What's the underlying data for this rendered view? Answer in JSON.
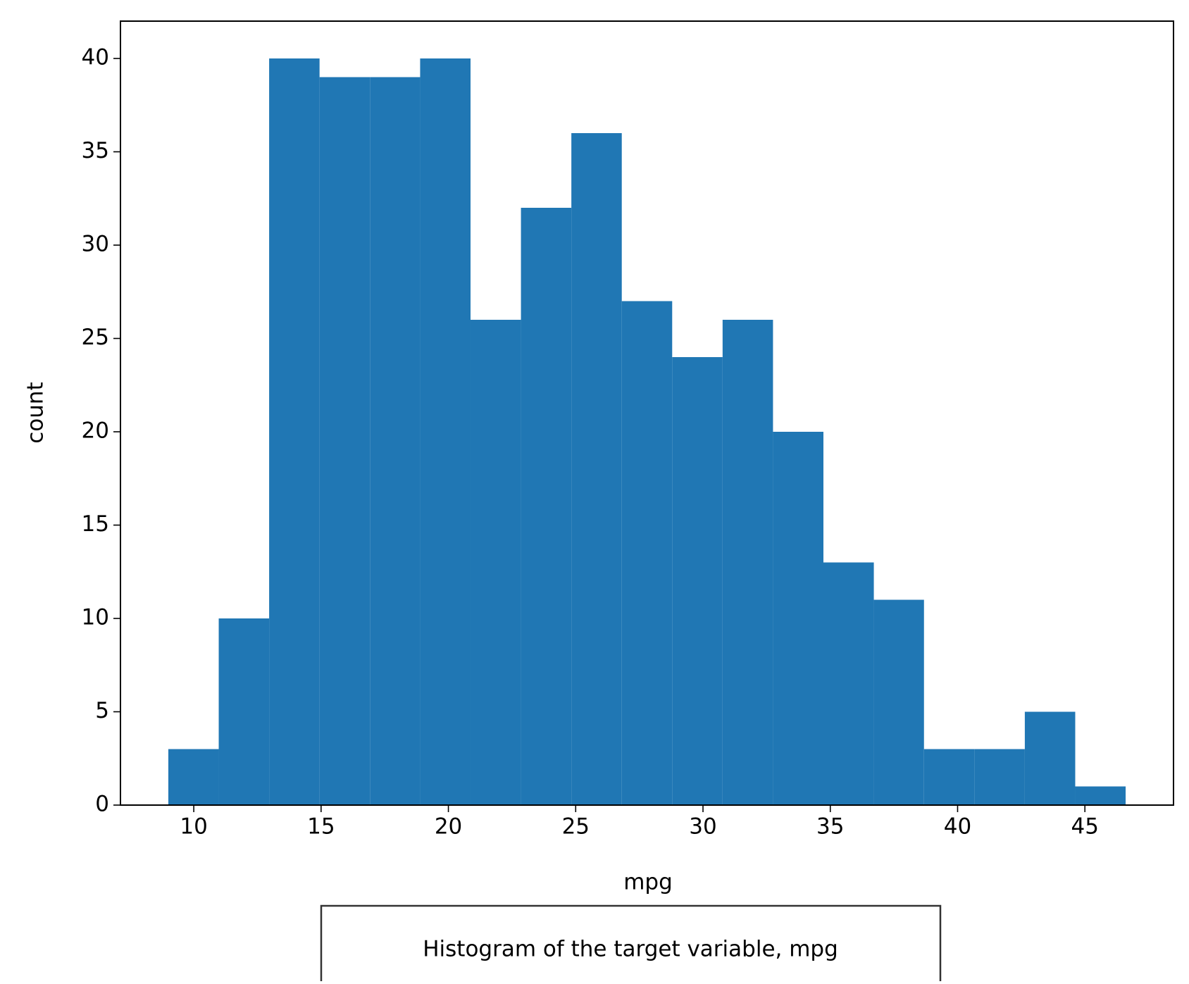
{
  "chart_data": {
    "type": "histogram",
    "caption": "Histogram of the target variable, mpg",
    "x_label": "mpg",
    "y_label": "count",
    "bins": [
      9,
      10.98,
      12.96,
      14.94,
      16.92,
      18.89,
      20.87,
      22.85,
      24.83,
      26.81,
      28.79,
      30.77,
      32.75,
      34.73,
      36.71,
      38.68,
      40.66,
      42.64,
      44.62,
      46.6
    ],
    "values": [
      3,
      10,
      40,
      39,
      39,
      40,
      26,
      32,
      36,
      27,
      24,
      26,
      20,
      13,
      11,
      3,
      3,
      5,
      1
    ],
    "color": "#2077b4",
    "xlim": [
      7.12,
      48.48
    ],
    "xticks": [
      10,
      15,
      20,
      25,
      30,
      35,
      40,
      45
    ],
    "ylim": [
      0,
      42
    ],
    "yticks": [
      0,
      5,
      10,
      15,
      20,
      25,
      30,
      35,
      40
    ],
    "grid": false
  }
}
